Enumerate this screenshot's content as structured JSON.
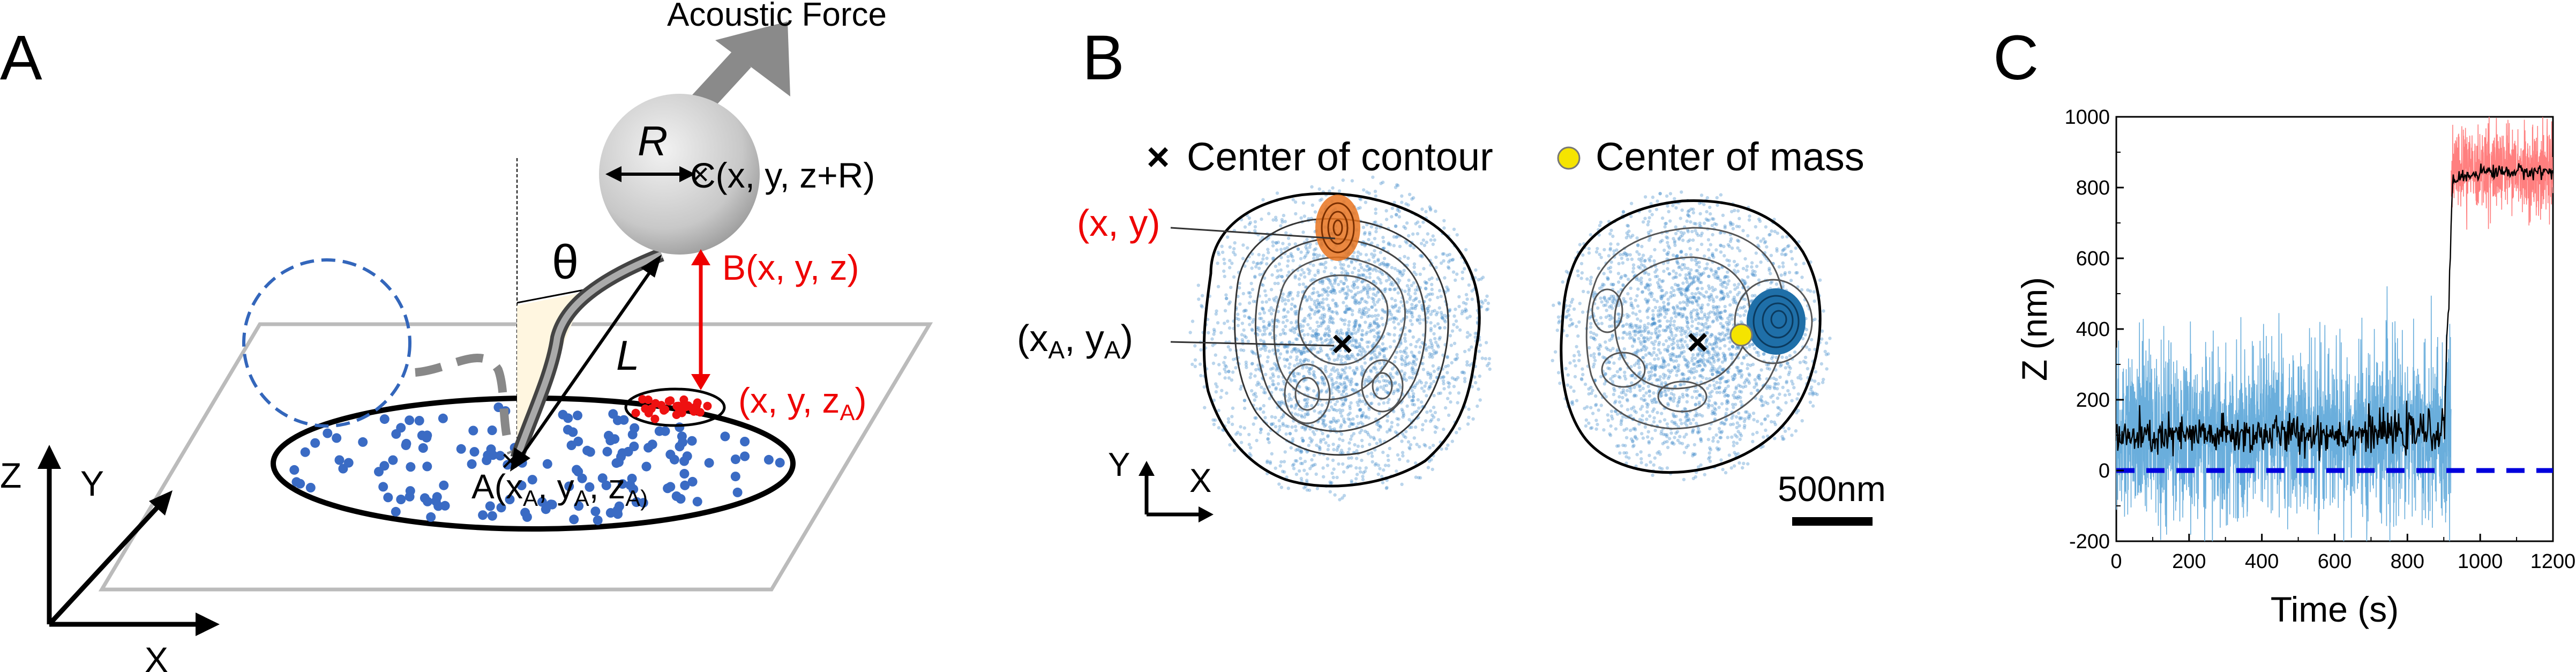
{
  "panels": {
    "a": {
      "letter": "A",
      "force_label": "Acoustic Force",
      "radius_label": "R",
      "center_label": "C(x, y, z+R)",
      "theta_label": "θ",
      "tether_label": "L",
      "b_label": "B(x, y, z)",
      "xyza_base": "(x, y, z",
      "xyza_sub": "A",
      "xyza_close": ")",
      "anchor_parts": {
        "a_prefix": "A(x",
        "sub1": "A",
        "comma1": ", y",
        "sub2": "A",
        "comma2": ", z",
        "sub3": "A)"
      },
      "axes": {
        "z": "Z",
        "y": "Y",
        "x": "X"
      }
    },
    "b": {
      "letter": "B",
      "legend_contour": "Center of contour",
      "legend_mass": "Center of mass",
      "xy_label": "(x, y)",
      "xaya_base1": "(x",
      "xaya_sub1": "A",
      "xaya_mid": ", y",
      "xaya_sub2": "A",
      "xaya_close": ")",
      "axes": {
        "y": "Y",
        "x": "X"
      },
      "scale_label": "500nm",
      "colors": {
        "cloud": "#3a86c8",
        "hotspot": "#e8731f",
        "mass": "#f5e400"
      }
    },
    "c": {
      "letter": "C",
      "colors": {
        "before": "#6aaedc",
        "after": "#ff7f7f",
        "mean": "#000000",
        "baseline": "#0000dd"
      }
    }
  },
  "chart_data": {
    "type": "line",
    "xlabel": "Time (s)",
    "ylabel": "Z (nm)",
    "xlim": [
      0,
      1200
    ],
    "ylim": [
      -200,
      1000
    ],
    "x_ticks": [
      "0",
      "200",
      "400",
      "600",
      "800",
      "1000",
      "1200"
    ],
    "y_ticks": [
      "-200",
      "0",
      "200",
      "400",
      "600",
      "800",
      "1000"
    ],
    "step_time_s": 920,
    "series": [
      {
        "values": [
          [
            0,
            100
          ],
          [
            920,
            100
          ]
        ],
        "noise_range": [
          -100,
          480
        ]
      },
      {
        "values": [
          [
            920,
            850
          ],
          [
            1200,
            850
          ]
        ],
        "noise_range": [
          700,
          1000
        ]
      },
      {
        "values": [
          [
            0,
            90
          ],
          [
            300,
            100
          ],
          [
            600,
            105
          ],
          [
            900,
            110
          ],
          [
            925,
            820
          ],
          [
            1000,
            845
          ],
          [
            1200,
            845
          ]
        ]
      }
    ],
    "baseline": 0
  }
}
